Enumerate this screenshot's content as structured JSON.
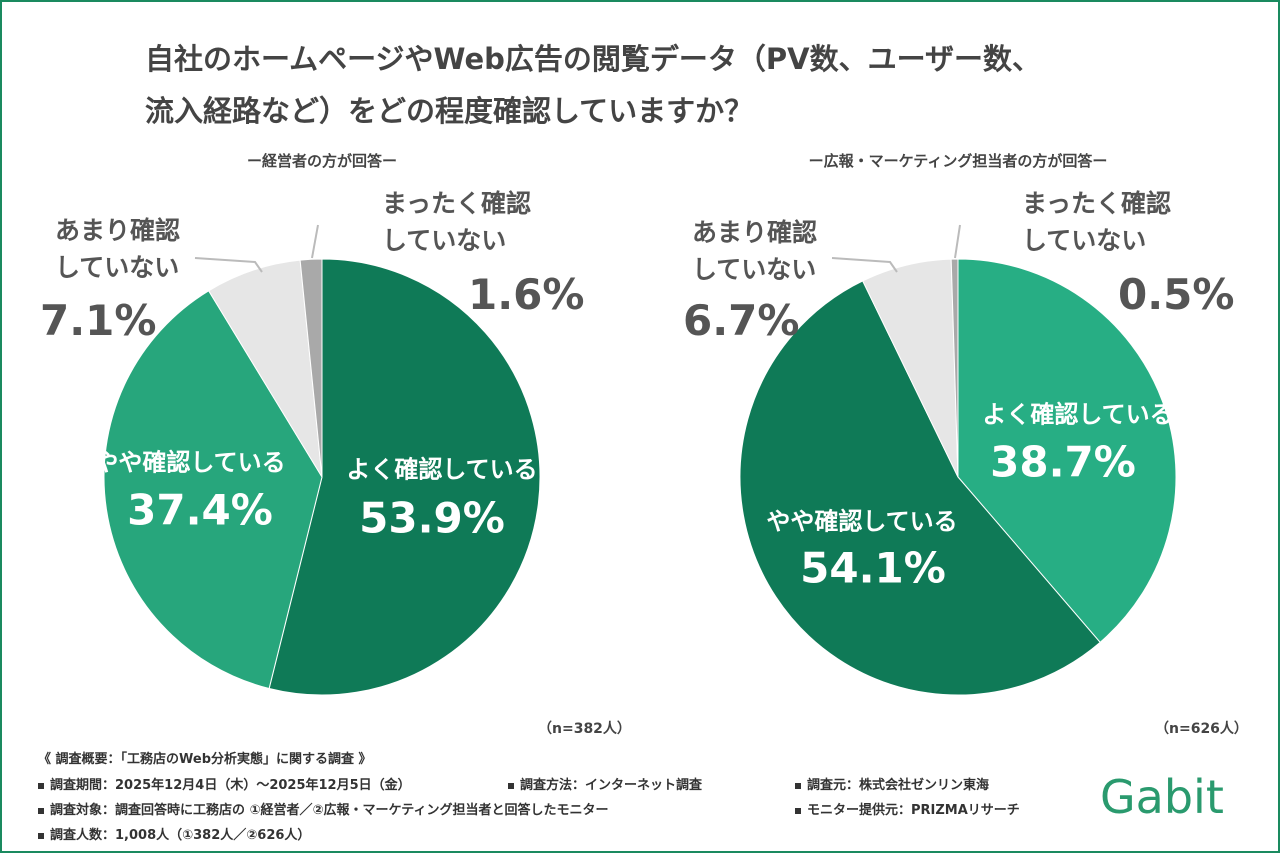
{
  "title": [
    "自社のホームページやWeb広告の閲覧データ（PV数、ユーザー数、",
    "流入経路など）をどの程度確認していますか？"
  ],
  "chart_data": [
    {
      "type": "pie",
      "subtitle": "ー経営者の方が回答ー",
      "note": "（n=382人）",
      "categories": [
        "よく確認している",
        "やや確認している",
        "あまり確認していない",
        "まったく確認していない"
      ],
      "values": [
        53.9,
        37.4,
        7.1,
        1.6
      ],
      "value_labels": [
        "53.9%",
        "37.4%",
        "7.1%",
        "1.6%"
      ],
      "colors": [
        "#0f7a57",
        "#27a67c",
        "#e6e6e6",
        "#a9a9a9"
      ]
    },
    {
      "type": "pie",
      "subtitle": "ー広報・マーケティング担当者の方が回答ー",
      "note": "（n=626人）",
      "categories": [
        "よく確認している",
        "やや確認している",
        "あまり確認していない",
        "まったく確認していない"
      ],
      "values": [
        38.7,
        54.1,
        6.7,
        0.5
      ],
      "value_labels": [
        "38.7%",
        "54.1%",
        "6.7%",
        "0.5%"
      ],
      "colors": [
        "#27ae84",
        "#0f7a57",
        "#e6e6e6",
        "#a9a9a9"
      ]
    }
  ],
  "survey": {
    "heading": "《 調査概要：「工務店のWeb分析実態」に関する調査 》",
    "items": [
      "調査期間：2025年12月4日（木）～2025年12月5日（金）",
      "調査方法：インターネット調査",
      "調査元：株式会社ゼンリン東海",
      "調査対象：調査回答時に工務店の ①経営者／②広報・マーケティング担当者と回答したモニター",
      "モニター提供元：PRIZMAリサーチ",
      "調査人数：1,008人（①382人／②626人）"
    ]
  },
  "brand": "Gabit"
}
